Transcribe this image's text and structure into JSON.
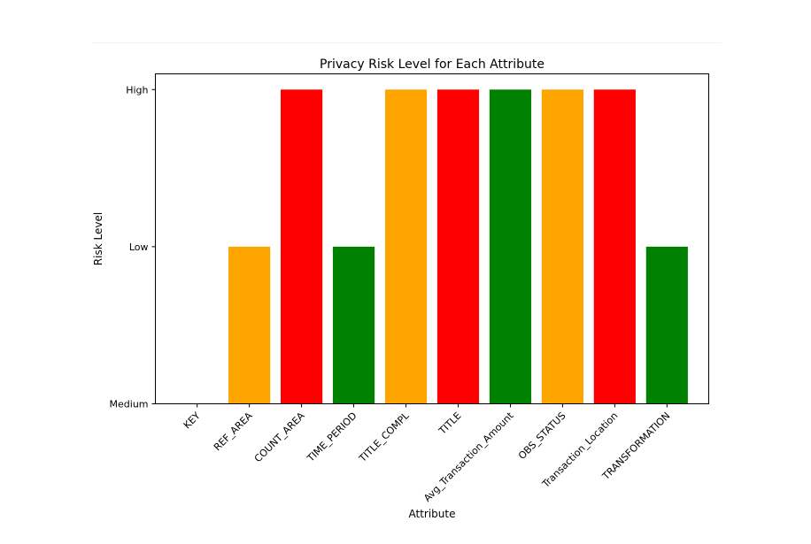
{
  "chart_data": {
    "type": "bar",
    "title": "Privacy Risk Level for Each Attribute",
    "xlabel": "Attribute",
    "ylabel": "Risk Level",
    "y_ticks": [
      "Medium",
      "Low",
      "High"
    ],
    "ylim": [
      0,
      2.1
    ],
    "grid": false,
    "legend": "none",
    "categories": [
      "KEY",
      "REF_AREA",
      "COUNT_AREA",
      "TIME_PERIOD",
      "TITLE_COMPL",
      "TITLE",
      "Avg_Transaction_Amount",
      "OBS_STATUS",
      "Transaction_Location",
      "TRANSFORMATION"
    ],
    "values": [
      0,
      1,
      2,
      1,
      2,
      2,
      2,
      2,
      2,
      1
    ],
    "colors": [
      "#ffa500",
      "#ffa500",
      "#ff0000",
      "#008000",
      "#ffa500",
      "#ff0000",
      "#008000",
      "#ffa500",
      "#ff0000",
      "#008000"
    ]
  }
}
